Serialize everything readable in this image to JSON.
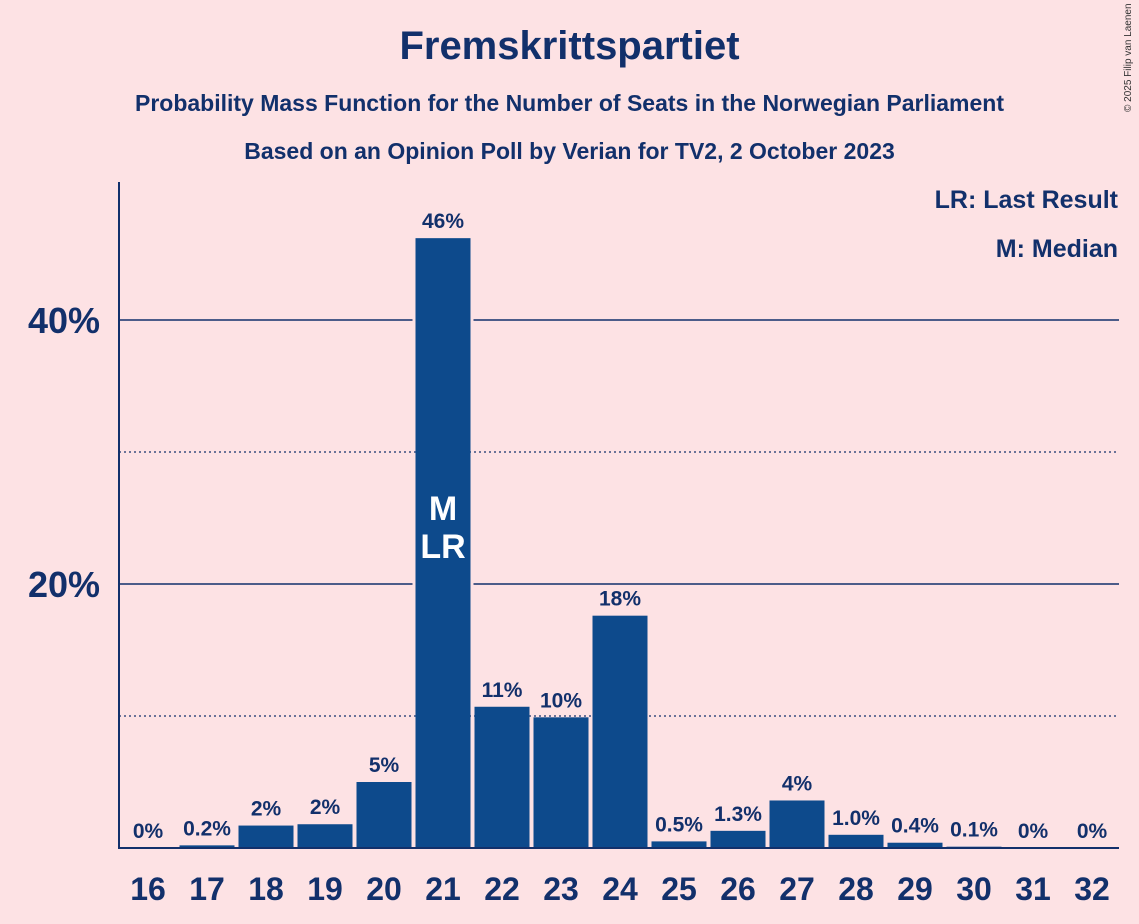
{
  "title": "Fremskrittspartiet",
  "subtitle_1": "Probability Mass Function for the Number of Seats in the Norwegian Parliament",
  "subtitle_2": "Based on an Opinion Poll by Verian for TV2, 2 October 2023",
  "copyright": "© 2025 Filip van Laenen",
  "legend": {
    "last_result": "LR: Last Result",
    "median": "M: Median"
  },
  "colors": {
    "background": "#fde2e4",
    "bar": "#0d4a8c",
    "text": "#12306b"
  },
  "chart_data": {
    "type": "bar",
    "categories": [
      "16",
      "17",
      "18",
      "19",
      "20",
      "21",
      "22",
      "23",
      "24",
      "25",
      "26",
      "27",
      "28",
      "29",
      "30",
      "31",
      "32"
    ],
    "values": [
      0,
      0.2,
      1.7,
      1.8,
      5.0,
      46.2,
      10.7,
      9.9,
      17.6,
      0.5,
      1.3,
      3.6,
      1.0,
      0.4,
      0.1,
      0,
      0
    ],
    "labels": [
      "0%",
      "0.2%",
      "2%",
      "2%",
      "5%",
      "46%",
      "11%",
      "10%",
      "18%",
      "0.5%",
      "1.3%",
      "4%",
      "1.0%",
      "0.4%",
      "0.1%",
      "0%",
      "0%"
    ],
    "yticks": [
      {
        "value": 20,
        "label": "20%"
      },
      {
        "value": 40,
        "label": "40%"
      }
    ],
    "minor_gridlines": [
      10,
      30
    ],
    "ylim": [
      0,
      50
    ],
    "bar_annotations": [
      {
        "category": "21",
        "lines": [
          "M",
          "LR"
        ]
      }
    ],
    "legend_position": "top-right"
  }
}
